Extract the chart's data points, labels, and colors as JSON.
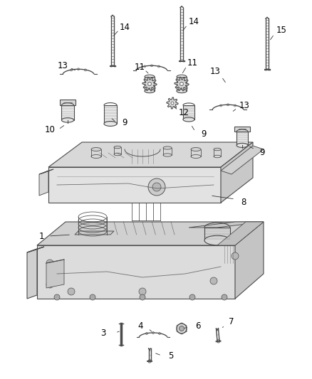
{
  "background_color": "#ffffff",
  "line_color": "#4a4a4a",
  "label_color": "#000000",
  "figure_width": 4.38,
  "figure_height": 5.33,
  "dpi": 100,
  "parts": {
    "bolt_long": {
      "color": "#5a5a5a",
      "lw": 1.2
    },
    "clip": {
      "color": "#5a5a5a",
      "lw": 1.0
    },
    "cylinder": {
      "color": "#6a6a6a",
      "lw": 0.9
    },
    "gear": {
      "color": "#5a5a5a",
      "lw": 0.8
    }
  }
}
